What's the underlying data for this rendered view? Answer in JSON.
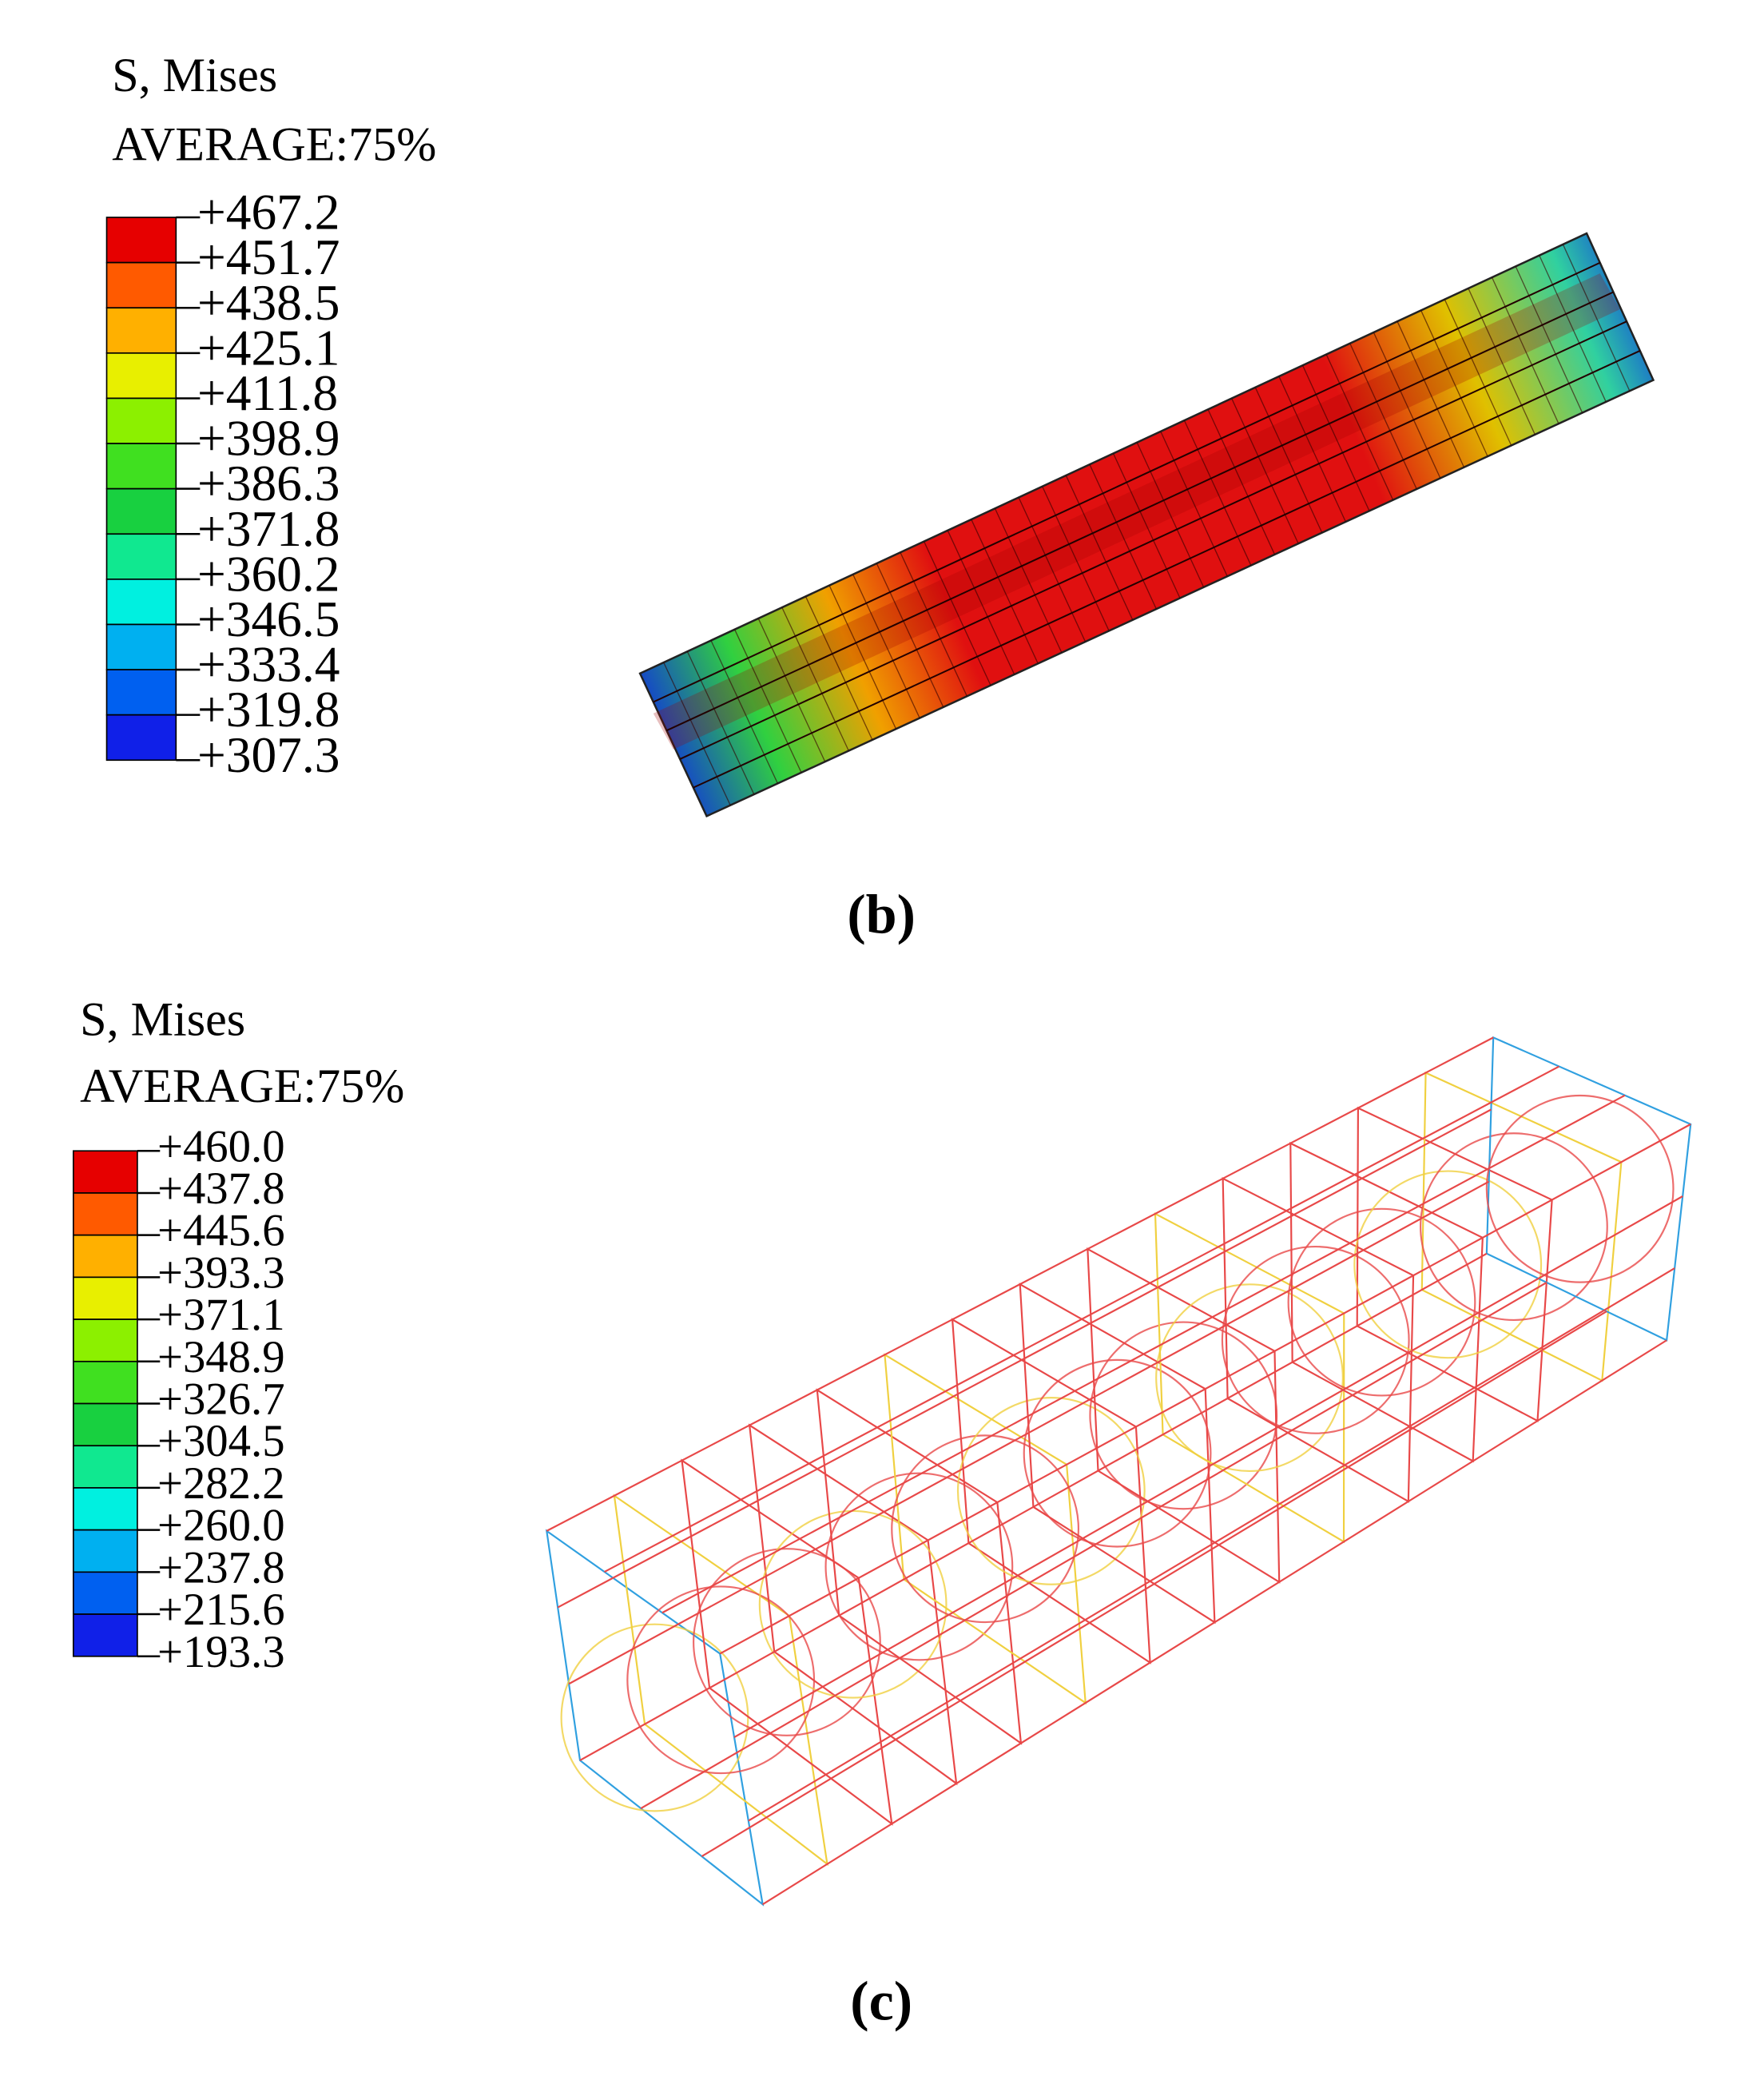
{
  "panels": [
    {
      "legend": {
        "title": "S, Mises",
        "subtitle": "AVERAGE:75%",
        "labels": [
          "+467.2",
          "+451.7",
          "+438.5",
          "+425.1",
          "+411.8",
          "+398.9",
          "+386.3",
          "+371.8",
          "+360.2",
          "+346.5",
          "+333.4",
          "+319.8",
          "+307.3"
        ]
      },
      "caption": "(b)"
    },
    {
      "legend": {
        "title": "S, Mises",
        "subtitle": "AVERAGE:75%",
        "labels": [
          "+460.0",
          "+437.8",
          "+445.6",
          "+393.3",
          "+371.1",
          "+348.9",
          "+326.7",
          "+304.5",
          "+282.2",
          "+260.0",
          "+237.8",
          "+215.6",
          "+193.3"
        ]
      },
      "caption": "(c)"
    }
  ]
}
